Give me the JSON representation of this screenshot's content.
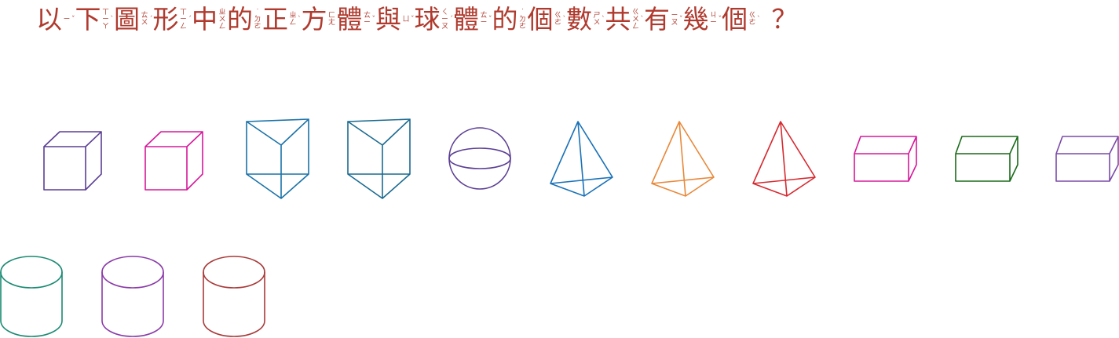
{
  "question": {
    "chars": [
      {
        "hanzi": "以",
        "zhuyin": "ㄧ",
        "tone": "ˇ"
      },
      {
        "hanzi": "下",
        "zhuyin": "ㄒㄧㄚ",
        "tone": "ˋ"
      },
      {
        "hanzi": "圖",
        "zhuyin": "ㄊㄨ",
        "tone": "ˊ"
      },
      {
        "hanzi": "形",
        "zhuyin": "ㄒㄧㄥ",
        "tone": "ˊ"
      },
      {
        "hanzi": "中",
        "zhuyin": "ㄓㄨㄥ",
        "tone": ""
      },
      {
        "hanzi": "的",
        "zhuyin": "˙ㄉㄜ",
        "tone": ""
      },
      {
        "hanzi": "正",
        "zhuyin": "ㄓㄥ",
        "tone": "ˋ"
      },
      {
        "hanzi": "方",
        "zhuyin": "ㄈㄤ",
        "tone": ""
      },
      {
        "hanzi": "體",
        "zhuyin": "ㄊㄧ",
        "tone": "ˇ"
      },
      {
        "hanzi": "與",
        "zhuyin": "ㄩ",
        "tone": "ˇ"
      },
      {
        "hanzi": "球",
        "zhuyin": "ㄑㄧㄡ",
        "tone": "ˊ"
      },
      {
        "hanzi": "體",
        "zhuyin": "ㄊㄧ",
        "tone": "ˇ"
      },
      {
        "hanzi": "的",
        "zhuyin": "˙ㄉㄜ",
        "tone": ""
      },
      {
        "hanzi": "個",
        "zhuyin": "ㄍㄜ",
        "tone": "ˋ"
      },
      {
        "hanzi": "數",
        "zhuyin": "ㄕㄨ",
        "tone": "ˋ"
      },
      {
        "hanzi": "共",
        "zhuyin": "ㄍㄨㄥ",
        "tone": "ˋ"
      },
      {
        "hanzi": "有",
        "zhuyin": "ㄧㄡ",
        "tone": "ˇ"
      },
      {
        "hanzi": "幾",
        "zhuyin": "ㄐㄧ",
        "tone": "ˇ"
      },
      {
        "hanzi": "個",
        "zhuyin": "ㄍㄜ",
        "tone": "ˋ"
      }
    ],
    "end_mark": "？"
  },
  "shapes": [
    {
      "type": "cube",
      "color": "#5b3e94"
    },
    {
      "type": "cube",
      "color": "#d6189a"
    },
    {
      "type": "triangular-prism",
      "color": "#1a72a8"
    },
    {
      "type": "triangular-prism",
      "color": "#1a6a90"
    },
    {
      "type": "sphere",
      "color": "#5b3e94"
    },
    {
      "type": "pyramid",
      "color": "#1a72b8"
    },
    {
      "type": "pyramid",
      "color": "#e8893a"
    },
    {
      "type": "pyramid",
      "color": "#d62a30"
    },
    {
      "type": "rectangular-prism",
      "color": "#d6189a"
    },
    {
      "type": "rectangular-prism",
      "color": "#1a6a1a"
    },
    {
      "type": "rectangular-prism",
      "color": "#7a4aa8"
    },
    {
      "type": "cylinder",
      "color": "#1a8a72"
    },
    {
      "type": "cylinder",
      "color": "#8a3aa8"
    },
    {
      "type": "cylinder",
      "color": "#a83a3a"
    }
  ]
}
